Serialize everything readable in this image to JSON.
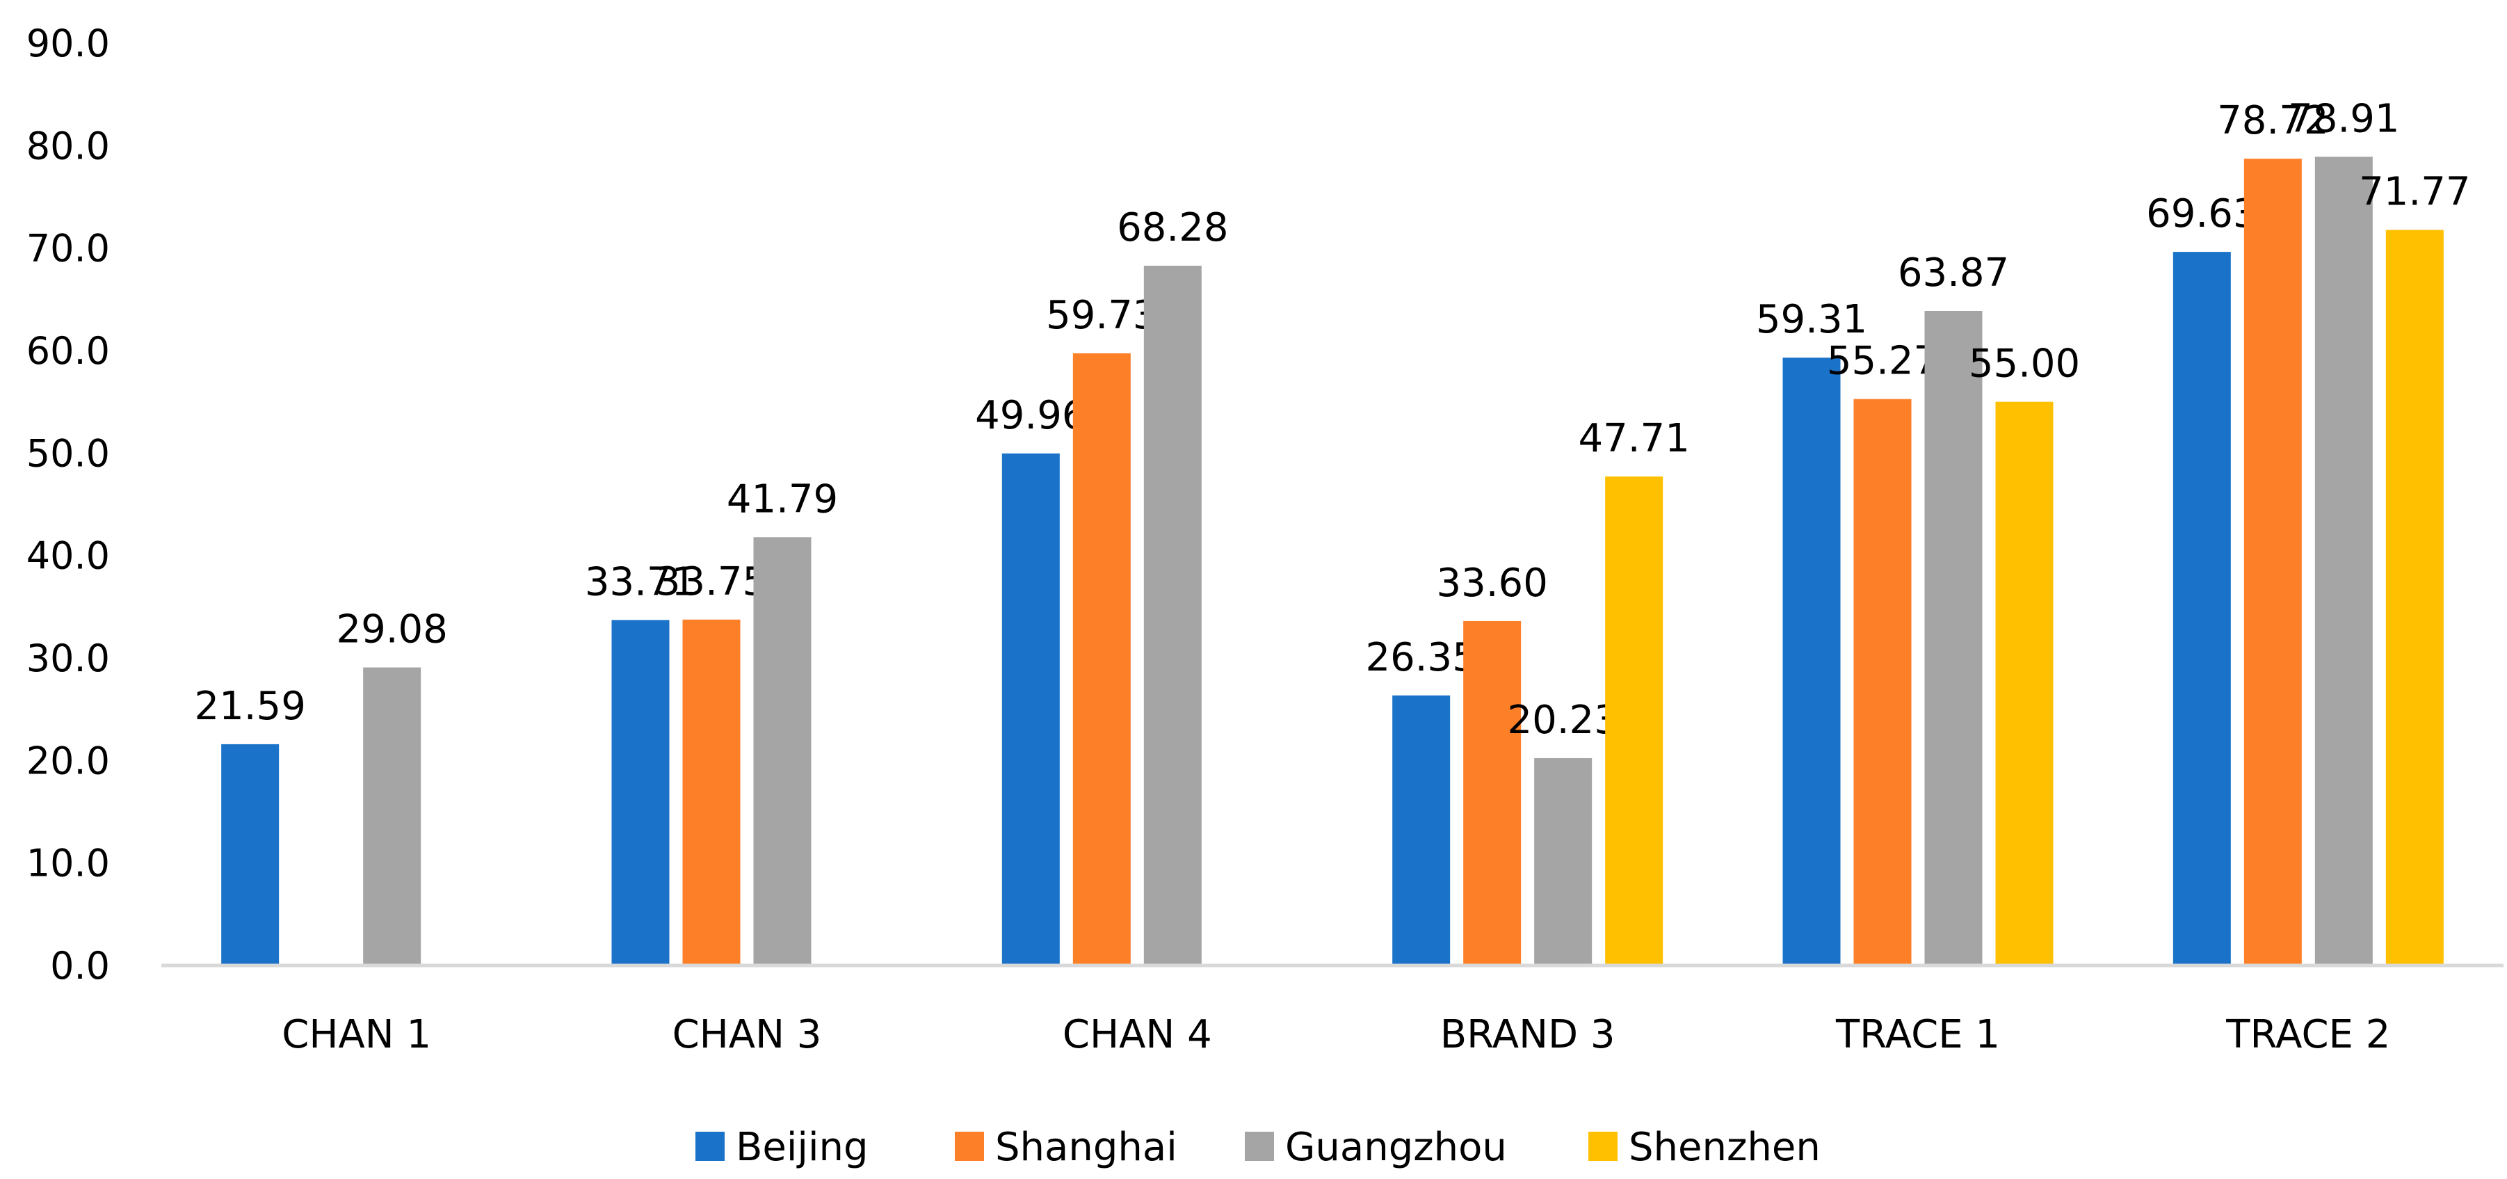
{
  "chart_data": {
    "type": "bar",
    "title": "",
    "xlabel": "",
    "ylabel": "",
    "ylim": [
      0,
      90
    ],
    "yticks": [
      "0.0",
      "10.0",
      "20.0",
      "30.0",
      "40.0",
      "50.0",
      "60.0",
      "70.0",
      "80.0",
      "90.0"
    ],
    "grid": false,
    "legend_position": "bottom",
    "categories": [
      "CHAN 1",
      "CHAN 3",
      "CHAN 4",
      "BRAND 3",
      "TRACE 1",
      "TRACE 2"
    ],
    "series": [
      {
        "name": "Beijing",
        "color": "#1a73c8",
        "values": [
          21.59,
          33.71,
          49.96,
          26.35,
          59.31,
          69.63
        ],
        "labels": [
          "21.59",
          "33.71",
          "49.96",
          "26.35",
          "59.31",
          "69.63"
        ]
      },
      {
        "name": "Shanghai",
        "color": "#fd7f28",
        "values": [
          null,
          33.75,
          59.73,
          33.6,
          55.27,
          78.72
        ],
        "labels": [
          "",
          "33.75",
          "59.73",
          "33.60",
          "55.27",
          "78.72"
        ]
      },
      {
        "name": "Guangzhou",
        "color": "#a5a5a5",
        "values": [
          29.08,
          41.79,
          68.28,
          20.23,
          63.87,
          78.91
        ],
        "labels": [
          "29.08",
          "41.79",
          "68.28",
          "20.23",
          "63.87",
          "78.91"
        ]
      },
      {
        "name": "Shenzhen",
        "color": "#ffc000",
        "values": [
          null,
          null,
          null,
          47.71,
          55.0,
          71.77
        ],
        "labels": [
          "",
          "",
          "",
          "47.71",
          "55.00",
          "71.77"
        ]
      }
    ]
  }
}
